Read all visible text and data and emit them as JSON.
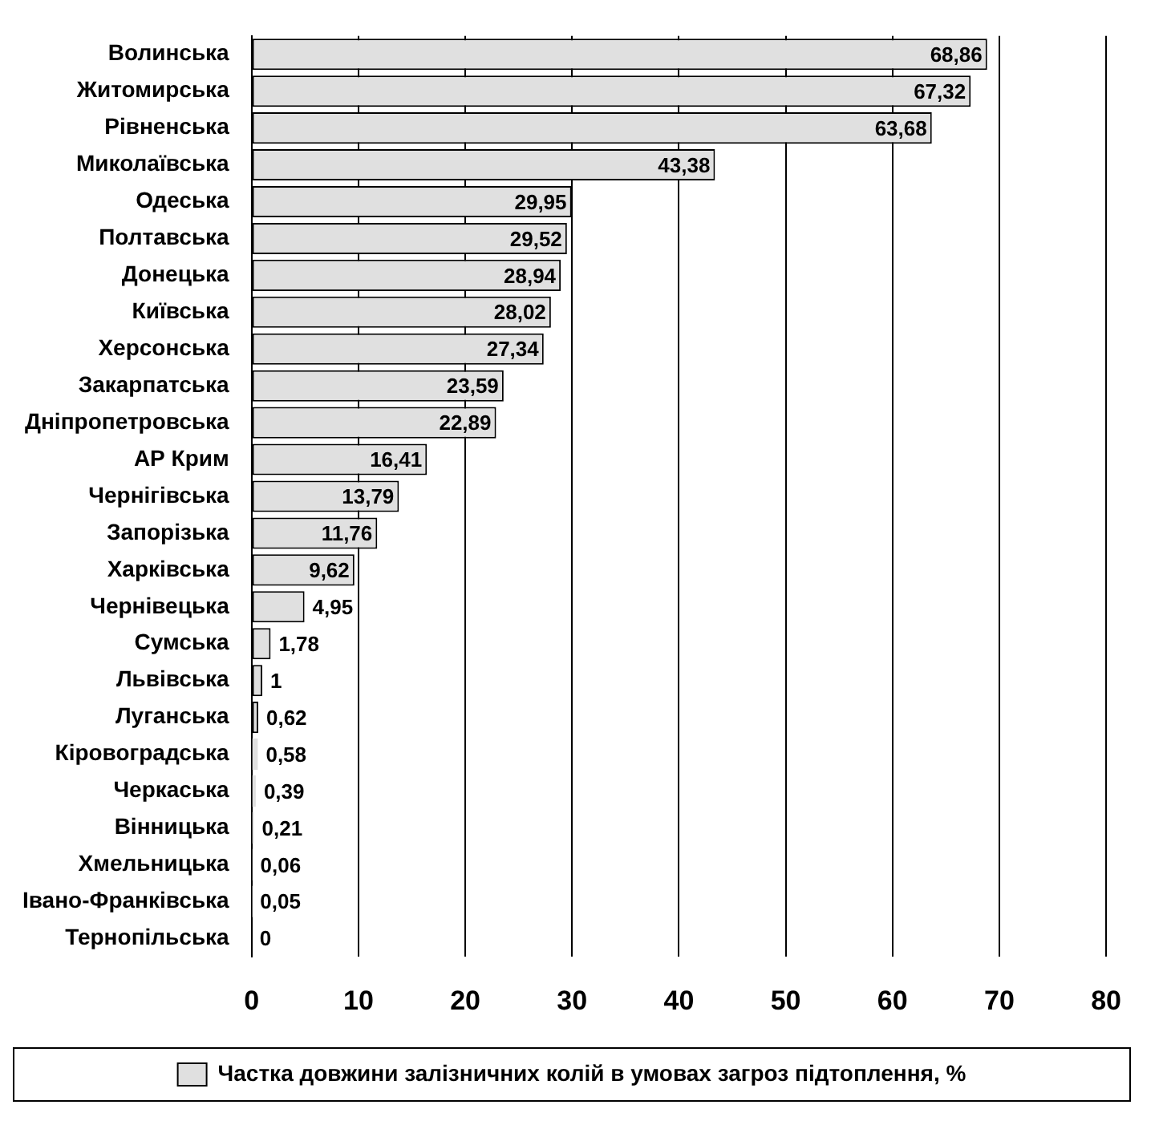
{
  "chart_data": {
    "type": "bar",
    "orientation": "horizontal",
    "categories": [
      "Волинська",
      "Житомирська",
      "Рівненська",
      "Миколаївська",
      "Одеська",
      "Полтавська",
      "Донецька",
      "Київська",
      "Херсонська",
      "Закарпатська",
      "Дніпропетровська",
      "АР Крим",
      "Чернігівська",
      "Запорізька",
      "Харківська",
      "Чернівецька",
      "Сумська",
      "Львівська",
      "Луганська",
      "Кіровоградська",
      "Черкаська",
      "Вінницька",
      "Хмельницька",
      "Івано-Франківська",
      "Тернопільська"
    ],
    "series": [
      {
        "name": "Частка довжини залізничних колій в умовах загроз підтоплення, %",
        "color": "#e0e0e0",
        "values": [
          68.86,
          67.32,
          63.68,
          43.38,
          29.95,
          29.52,
          28.94,
          28.02,
          27.34,
          23.59,
          22.89,
          16.41,
          13.79,
          11.76,
          9.62,
          4.95,
          1.78,
          1,
          0.62,
          0.58,
          0.39,
          0.21,
          0.06,
          0.05,
          0
        ],
        "value_labels": [
          "68,86",
          "67,32",
          "63,68",
          "43,38",
          "29,95",
          "29,52",
          "28,94",
          "28,02",
          "27,34",
          "23,59",
          "22,89",
          "16,41",
          "13,79",
          "11,76",
          "9,62",
          "4,95",
          "1,78",
          "1",
          "0,62",
          "0,58",
          "0,39",
          "0,21",
          "0,06",
          "0,05",
          "0"
        ]
      }
    ],
    "xlim": [
      0,
      80
    ],
    "xticks": [
      0,
      10,
      20,
      30,
      40,
      50,
      60,
      70,
      80
    ],
    "grid": "x",
    "legend": "bottom"
  }
}
